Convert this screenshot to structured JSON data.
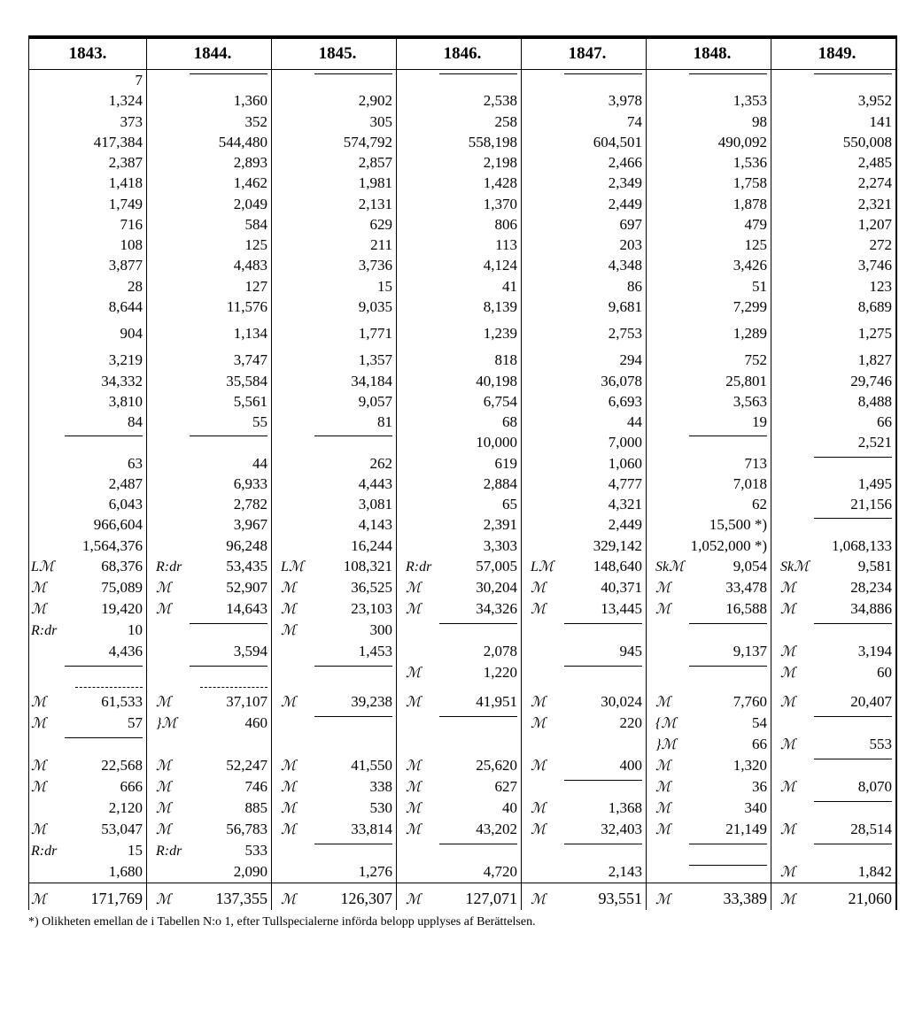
{
  "headers": [
    "1843.",
    "1844.",
    "1845.",
    "1846.",
    "1847.",
    "1848.",
    "1849."
  ],
  "rows": [
    [
      {
        "v": "7"
      },
      {
        "rule": true
      },
      {
        "rule": true
      },
      {
        "rule": true
      },
      {
        "rule": true
      },
      {
        "rule": true
      },
      {
        "rule": true
      }
    ],
    [
      {
        "v": "1,324"
      },
      {
        "v": "1,360"
      },
      {
        "v": "2,902"
      },
      {
        "v": "2,538"
      },
      {
        "v": "3,978"
      },
      {
        "v": "1,353"
      },
      {
        "v": "3,952"
      }
    ],
    [
      {
        "v": "373"
      },
      {
        "v": "352"
      },
      {
        "v": "305"
      },
      {
        "v": "258"
      },
      {
        "v": "74"
      },
      {
        "v": "98"
      },
      {
        "v": "141"
      }
    ],
    [
      {
        "v": "417,384"
      },
      {
        "v": "544,480"
      },
      {
        "v": "574,792"
      },
      {
        "v": "558,198"
      },
      {
        "v": "604,501"
      },
      {
        "v": "490,092"
      },
      {
        "v": "550,008"
      }
    ],
    [
      {
        "v": "2,387"
      },
      {
        "v": "2,893"
      },
      {
        "v": "2,857"
      },
      {
        "v": "2,198"
      },
      {
        "v": "2,466"
      },
      {
        "v": "1,536"
      },
      {
        "v": "2,485"
      }
    ],
    [
      {
        "v": "1,418"
      },
      {
        "v": "1,462"
      },
      {
        "v": "1,981"
      },
      {
        "v": "1,428"
      },
      {
        "v": "2,349"
      },
      {
        "v": "1,758"
      },
      {
        "v": "2,274"
      }
    ],
    [
      {
        "v": "1,749"
      },
      {
        "v": "2,049"
      },
      {
        "v": "2,131"
      },
      {
        "v": "1,370"
      },
      {
        "v": "2,449"
      },
      {
        "v": "1,878"
      },
      {
        "v": "2,321"
      }
    ],
    [
      {
        "v": "716"
      },
      {
        "v": "584"
      },
      {
        "v": "629"
      },
      {
        "v": "806"
      },
      {
        "v": "697"
      },
      {
        "v": "479"
      },
      {
        "v": "1,207"
      }
    ],
    [
      {
        "v": "108"
      },
      {
        "v": "125"
      },
      {
        "v": "211"
      },
      {
        "v": "113"
      },
      {
        "v": "203"
      },
      {
        "v": "125"
      },
      {
        "v": "272"
      }
    ],
    [
      {
        "v": "3,877"
      },
      {
        "v": "4,483"
      },
      {
        "v": "3,736"
      },
      {
        "v": "4,124"
      },
      {
        "v": "4,348"
      },
      {
        "v": "3,426"
      },
      {
        "v": "3,746"
      }
    ],
    [
      {
        "v": "28"
      },
      {
        "v": "127"
      },
      {
        "v": "15"
      },
      {
        "v": "41"
      },
      {
        "v": "86"
      },
      {
        "v": "51"
      },
      {
        "v": "123"
      }
    ],
    [
      {
        "v": "8,644"
      },
      {
        "v": "11,576"
      },
      {
        "v": "9,035"
      },
      {
        "v": "8,139"
      },
      {
        "v": "9,681"
      },
      {
        "v": "7,299"
      },
      {
        "v": "8,689"
      }
    ],
    [
      {
        "v": "904",
        "gap": true
      },
      {
        "v": "1,134",
        "gap": true
      },
      {
        "v": "1,771",
        "gap": true
      },
      {
        "v": "1,239",
        "gap": true
      },
      {
        "v": "2,753",
        "gap": true
      },
      {
        "v": "1,289",
        "gap": true
      },
      {
        "v": "1,275",
        "gap": true
      }
    ],
    [
      {
        "v": "3,219",
        "gap": true
      },
      {
        "v": "3,747",
        "gap": true
      },
      {
        "v": "1,357",
        "gap": true
      },
      {
        "v": "818",
        "gap": true
      },
      {
        "v": "294",
        "gap": true
      },
      {
        "v": "752",
        "gap": true
      },
      {
        "v": "1,827",
        "gap": true
      }
    ],
    [
      {
        "v": "34,332"
      },
      {
        "v": "35,584"
      },
      {
        "v": "34,184"
      },
      {
        "v": "40,198"
      },
      {
        "v": "36,078"
      },
      {
        "v": "25,801"
      },
      {
        "v": "29,746"
      }
    ],
    [
      {
        "v": "3,810"
      },
      {
        "v": "5,561"
      },
      {
        "v": "9,057"
      },
      {
        "v": "6,754"
      },
      {
        "v": "6,693"
      },
      {
        "v": "3,563"
      },
      {
        "v": "8,488"
      }
    ],
    [
      {
        "v": "84"
      },
      {
        "v": "55"
      },
      {
        "v": "81"
      },
      {
        "v": "68"
      },
      {
        "v": "44"
      },
      {
        "v": "19"
      },
      {
        "v": "66"
      }
    ],
    [
      {
        "rule": true
      },
      {
        "rule": true
      },
      {
        "rule": true
      },
      {
        "v": "10,000"
      },
      {
        "v": "7,000"
      },
      {
        "rule": true
      },
      {
        "v": "2,521"
      }
    ],
    [
      {
        "v": "63"
      },
      {
        "v": "44"
      },
      {
        "v": "262"
      },
      {
        "v": "619"
      },
      {
        "v": "1,060"
      },
      {
        "v": "713"
      },
      {
        "rule": true
      }
    ],
    [
      {
        "v": "2,487"
      },
      {
        "v": "6,933"
      },
      {
        "v": "4,443"
      },
      {
        "v": "2,884"
      },
      {
        "v": "4,777"
      },
      {
        "v": "7,018"
      },
      {
        "v": "1,495"
      }
    ],
    [
      {
        "v": "6,043"
      },
      {
        "v": "2,782"
      },
      {
        "v": "3,081"
      },
      {
        "v": "65"
      },
      {
        "v": "4,321"
      },
      {
        "v": "62"
      },
      {
        "v": "21,156"
      }
    ],
    [
      {
        "v": "966,604"
      },
      {
        "v": "3,967"
      },
      {
        "v": "4,143"
      },
      {
        "v": "2,391"
      },
      {
        "v": "2,449"
      },
      {
        "v": "15,500 *)"
      },
      {
        "rule": true
      }
    ],
    [
      {
        "v": "1,564,376"
      },
      {
        "v": "96,248"
      },
      {
        "v": "16,244"
      },
      {
        "v": "3,303"
      },
      {
        "v": "329,142"
      },
      {
        "v": "1,052,000 *)"
      },
      {
        "v": "1,068,133"
      }
    ],
    [
      {
        "p": "Lℳ",
        "v": "68,376"
      },
      {
        "p": "R:dr",
        "v": "53,435"
      },
      {
        "p": "Lℳ",
        "v": "108,321"
      },
      {
        "p": "R:dr",
        "v": "57,005"
      },
      {
        "p": "Lℳ",
        "v": "148,640"
      },
      {
        "p": "Skℳ",
        "v": "9,054"
      },
      {
        "p": "Skℳ",
        "v": "9,581"
      }
    ],
    [
      {
        "p": "ℳ",
        "v": "75,089"
      },
      {
        "p": "ℳ",
        "v": "52,907"
      },
      {
        "p": "ℳ",
        "v": "36,525"
      },
      {
        "p": "ℳ",
        "v": "30,204"
      },
      {
        "p": "ℳ",
        "v": "40,371"
      },
      {
        "p": "ℳ",
        "v": "33,478"
      },
      {
        "p": "ℳ",
        "v": "28,234"
      }
    ],
    [
      {
        "p": "ℳ",
        "v": "19,420"
      },
      {
        "p": "ℳ",
        "v": "14,643"
      },
      {
        "p": "ℳ",
        "v": "23,103"
      },
      {
        "p": "ℳ",
        "v": "34,326"
      },
      {
        "p": "ℳ",
        "v": "13,445"
      },
      {
        "p": "ℳ",
        "v": "16,588"
      },
      {
        "p": "ℳ",
        "v": "34,886"
      }
    ],
    [
      {
        "p": "R:dr",
        "v": "10"
      },
      {
        "rule": true
      },
      {
        "p": "ℳ",
        "v": "300"
      },
      {
        "rule": true
      },
      {
        "rule": true
      },
      {
        "rule": true
      },
      {
        "rule": true
      }
    ],
    [
      {
        "v": "4,436"
      },
      {
        "v": "3,594"
      },
      {
        "v": "1,453"
      },
      {
        "v": "2,078"
      },
      {
        "v": "945"
      },
      {
        "v": "9,137"
      },
      {
        "p": "ℳ",
        "v": "3,194"
      }
    ],
    [
      {
        "rule": true
      },
      {
        "rule": true
      },
      {
        "rule": true
      },
      {
        "p": "ℳ",
        "v": "1,220"
      },
      {
        "rule": true
      },
      {
        "rule": true
      },
      {
        "p": "ℳ",
        "v": "60"
      }
    ],
    [
      {
        "dash": true
      },
      {
        "dash": true
      },
      {},
      {},
      {},
      {},
      {}
    ],
    [
      {
        "p": "ℳ",
        "v": "61,533"
      },
      {
        "p": "ℳ",
        "v": "37,107"
      },
      {
        "p": "ℳ",
        "v": "39,238"
      },
      {
        "p": "ℳ",
        "v": "41,951"
      },
      {
        "p": "ℳ",
        "v": "30,024"
      },
      {
        "p": "ℳ",
        "v": "7,760"
      },
      {
        "p": "ℳ",
        "v": "20,407"
      }
    ],
    [
      {
        "p": "ℳ",
        "v": "57"
      },
      {
        "p": "}ℳ",
        "v": "460"
      },
      {
        "rule": true
      },
      {
        "rule": true
      },
      {
        "p": "ℳ",
        "v": "220"
      },
      {
        "p": "{ℳ",
        "v": "54"
      },
      {
        "rule": true
      }
    ],
    [
      {
        "rule": true
      },
      {},
      {},
      {},
      {},
      {
        "p": "}ℳ",
        "v": "66"
      },
      {
        "p": "ℳ",
        "v": "553"
      }
    ],
    [
      {
        "p": "ℳ",
        "v": "22,568"
      },
      {
        "p": "ℳ",
        "v": "52,247"
      },
      {
        "p": "ℳ",
        "v": "41,550"
      },
      {
        "p": "ℳ",
        "v": "25,620"
      },
      {
        "p": "ℳ",
        "v": "400"
      },
      {
        "p": "ℳ",
        "v": "1,320"
      },
      {
        "rule": true
      }
    ],
    [
      {
        "p": "ℳ",
        "v": "666"
      },
      {
        "p": "ℳ",
        "v": "746"
      },
      {
        "p": "ℳ",
        "v": "338"
      },
      {
        "p": "ℳ",
        "v": "627"
      },
      {
        "rule": true
      },
      {
        "p": "ℳ",
        "v": "36"
      },
      {
        "p": "ℳ",
        "v": "8,070"
      }
    ],
    [
      {
        "v": "2,120"
      },
      {
        "p": "ℳ",
        "v": "885"
      },
      {
        "p": "ℳ",
        "v": "530"
      },
      {
        "p": "ℳ",
        "v": "40"
      },
      {
        "p": "ℳ",
        "v": "1,368"
      },
      {
        "p": "ℳ",
        "v": "340"
      },
      {
        "rule": true
      }
    ],
    [
      {
        "p": "ℳ",
        "v": "53,047"
      },
      {
        "p": "ℳ",
        "v": "56,783"
      },
      {
        "p": "ℳ",
        "v": "33,814"
      },
      {
        "p": "ℳ",
        "v": "43,202"
      },
      {
        "p": "ℳ",
        "v": "32,403"
      },
      {
        "p": "ℳ",
        "v": "21,149"
      },
      {
        "p": "ℳ",
        "v": "28,514"
      }
    ],
    [
      {
        "p": "R:dr",
        "v": "15"
      },
      {
        "p": "R:dr",
        "v": "533"
      },
      {
        "rule": true
      },
      {
        "rule": true
      },
      {
        "rule": true
      },
      {
        "rule": true
      },
      {
        "rule": true
      }
    ],
    [
      {
        "v": "1,680"
      },
      {
        "v": "2,090"
      },
      {
        "v": "1,276"
      },
      {
        "v": "4,720"
      },
      {
        "v": "2,143"
      },
      {
        "rule": true
      },
      {
        "p": "ℳ",
        "v": "1,842"
      }
    ]
  ],
  "totals": [
    {
      "p": "ℳ",
      "v": "171,769"
    },
    {
      "p": "ℳ",
      "v": "137,355"
    },
    {
      "p": "ℳ",
      "v": "126,307"
    },
    {
      "p": "ℳ",
      "v": "127,071"
    },
    {
      "p": "ℳ",
      "v": "93,551"
    },
    {
      "p": "ℳ",
      "v": "33,389"
    },
    {
      "p": "ℳ",
      "v": "21,060"
    }
  ],
  "footnote": "*) Olikheten emellan de i Tabellen N:o 1, efter Tullspecialerne införda belopp upplyses af Berättelsen."
}
